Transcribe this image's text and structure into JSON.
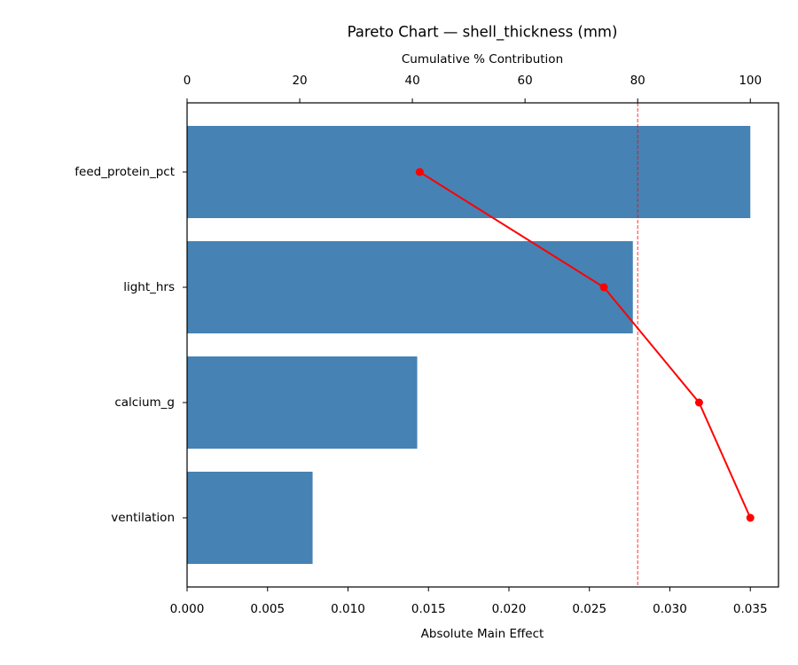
{
  "chart_data": {
    "type": "bar",
    "orientation": "horizontal",
    "title": "Pareto Chart — shell_thickness (mm)",
    "xlabel": "Absolute Main Effect",
    "x2label": "Cumulative % Contribution",
    "categories": [
      "feed_protein_pct",
      "light_hrs",
      "calcium_g",
      "ventilation"
    ],
    "values": [
      0.035,
      0.0277,
      0.0143,
      0.0078
    ],
    "color": "#4682b4",
    "xlim": [
      0,
      0.03675
    ],
    "xticks": [
      {
        "value": 0,
        "label": "0.000"
      },
      {
        "value": 0.005,
        "label": "0.005"
      },
      {
        "value": 0.01,
        "label": "0.010"
      },
      {
        "value": 0.015,
        "label": "0.015"
      },
      {
        "value": 0.02,
        "label": "0.020"
      },
      {
        "value": 0.025,
        "label": "0.025"
      },
      {
        "value": 0.03,
        "label": "0.030"
      },
      {
        "value": 0.035,
        "label": "0.035"
      }
    ],
    "x2lim": [
      0,
      105
    ],
    "x2ticks": [
      0,
      20,
      40,
      60,
      80,
      100
    ],
    "cumulative": {
      "values": [
        41.3,
        74.0,
        90.9,
        100
      ],
      "color": "#ff0000"
    },
    "threshold": {
      "value": 80,
      "color": "#ff0000"
    }
  }
}
